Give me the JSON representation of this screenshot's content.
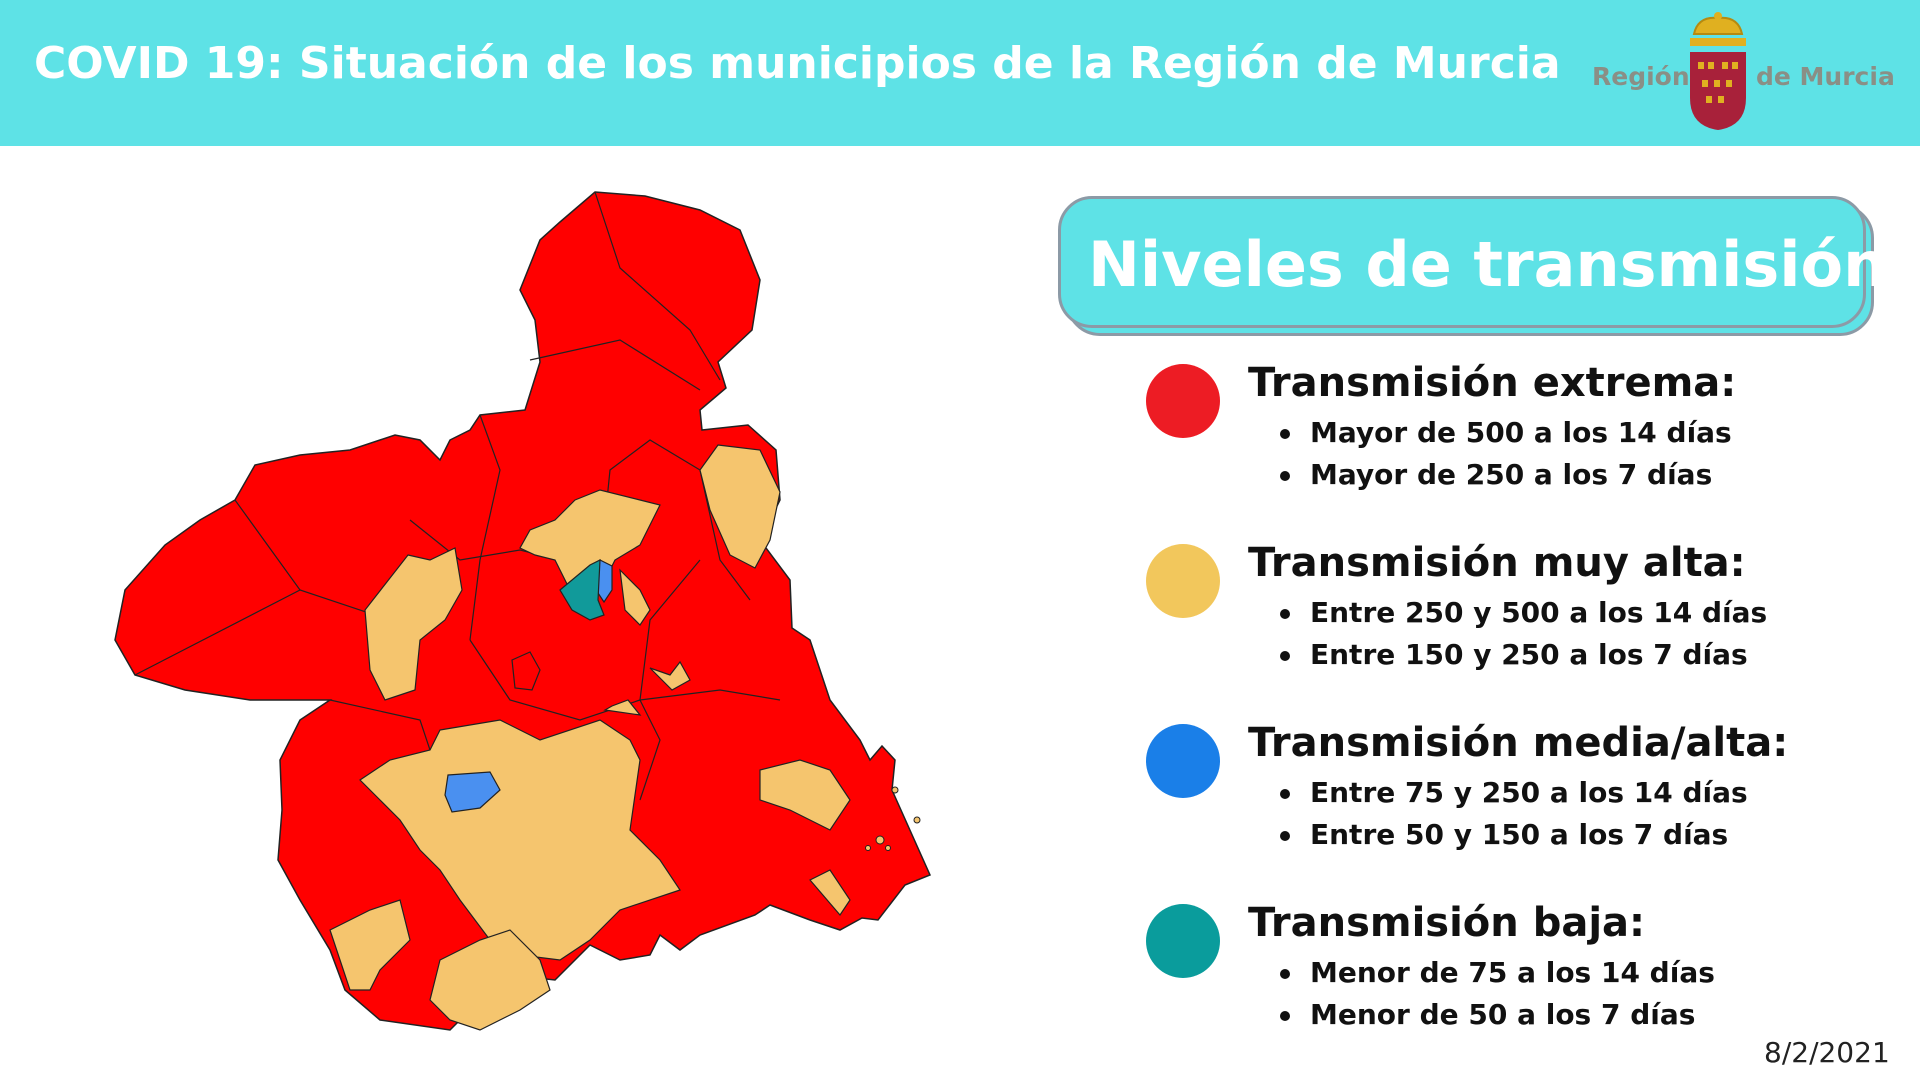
{
  "header": {
    "title": "COVID 19: Situación de los municipios de la Región de Murcia",
    "background": "#5ee2e6"
  },
  "logo": {
    "left_text": "Región",
    "right_text": "de Murcia"
  },
  "legend": {
    "title": "Niveles de transmisión:",
    "levels": [
      {
        "title": "Transmisión extrema:",
        "color": "#ed1c24",
        "items": [
          "Mayor de 500 a los 14 días",
          "Mayor de 250 a los 7 días"
        ]
      },
      {
        "title": "Transmisión muy alta:",
        "color": "#f2c75c",
        "items": [
          "Entre 250 y 500 a los 14 días",
          "Entre 150 y 250 a los 7 días"
        ]
      },
      {
        "title": "Transmisión media/alta:",
        "color": "#1a7fe8",
        "items": [
          "Entre 75 y 250 a los 14 días",
          "Entre 50 y 150 a los 7 días"
        ]
      },
      {
        "title": "Transmisión baja:",
        "color": "#0a9c9c",
        "items": [
          "Menor de 75 a los 14 días",
          "Menor de 50 a los 7 días"
        ]
      }
    ]
  },
  "map_colors": {
    "extreme": "#ff0000",
    "very_high": "#f5c56e",
    "medium_high": "#4a90f0",
    "low": "#119a9a"
  },
  "date": "8/2/2021"
}
